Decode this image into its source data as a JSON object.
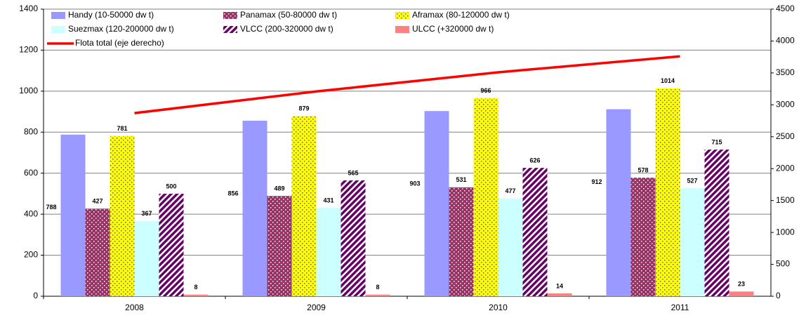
{
  "chart_data": {
    "type": "bar",
    "categories": [
      "2008",
      "2009",
      "2010",
      "2011"
    ],
    "series": [
      {
        "name": "Handy (10-50000 dw t)",
        "color": "#9999ff",
        "pattern": "solid",
        "values": [
          788,
          856,
          903,
          912
        ]
      },
      {
        "name": "Panamax (50-80000 dw t)",
        "color": "#993366",
        "pattern": "dots",
        "values": [
          427,
          489,
          531,
          578
        ]
      },
      {
        "name": "Aframax (80-120000 dw t)",
        "color": "#ffff00",
        "pattern": "dots",
        "values": [
          781,
          879,
          966,
          1014
        ]
      },
      {
        "name": "Suezmax (120-200000 dw t)",
        "color": "#ccffff",
        "pattern": "solid",
        "values": [
          367,
          431,
          477,
          527
        ]
      },
      {
        "name": "VLCC (200-320000 dw t)",
        "color": "#660066",
        "pattern": "stripes",
        "values": [
          500,
          565,
          626,
          715
        ]
      },
      {
        "name": "ULCC (+320000 dw t)",
        "color": "#ff8080",
        "pattern": "solid",
        "values": [
          8,
          8,
          14,
          23
        ]
      },
      {
        "name": "Flota total (eje derecho)",
        "color": "#ff0000",
        "type": "line",
        "axis": "y2",
        "values": [
          2870,
          3210,
          3510,
          3760
        ]
      }
    ],
    "ylim": [
      0,
      1400
    ],
    "yticks": [
      0,
      200,
      400,
      600,
      800,
      1000,
      1200,
      1400
    ],
    "y2lim": [
      0,
      4500
    ],
    "y2ticks": [
      0,
      500,
      1000,
      1500,
      2000,
      2500,
      3000,
      3500,
      4000,
      4500
    ],
    "grid": true,
    "legend": "top-left"
  }
}
